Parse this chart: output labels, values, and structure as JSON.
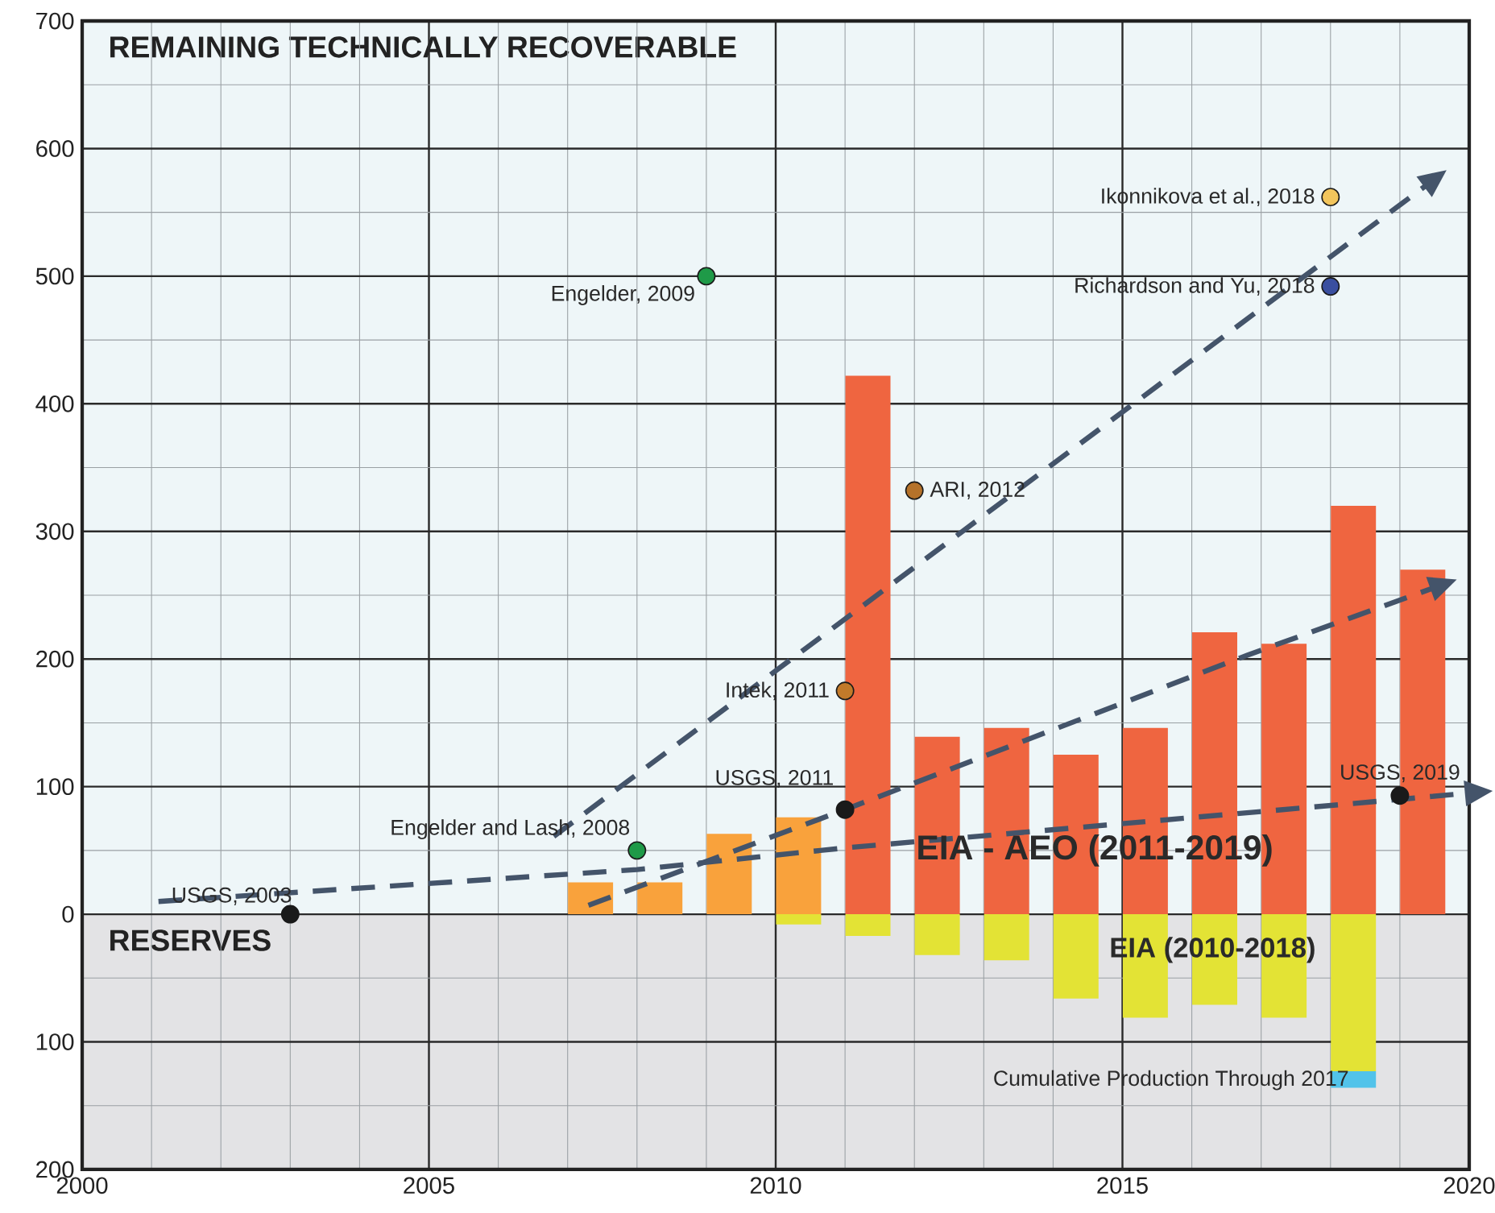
{
  "chart_data": {
    "type": "bar",
    "xlim": [
      2000,
      2020
    ],
    "ylim": [
      -200,
      700
    ],
    "xticks": [
      2000,
      2005,
      2010,
      2015,
      2020
    ],
    "yticks": [
      {
        "value": -200,
        "label": "200"
      },
      {
        "value": -100,
        "label": "100"
      },
      0,
      100,
      200,
      300,
      400,
      500,
      600,
      700
    ],
    "grid": true,
    "bands": [
      {
        "axis": "y",
        "from": 0,
        "to": 700,
        "label": "REMAINING TECHNICALLY RECOVERABLE",
        "color": "#eef6f8"
      },
      {
        "axis": "y",
        "from": -200,
        "to": 0,
        "label": "RESERVES",
        "color": "#e3e3e5"
      }
    ],
    "series": [
      {
        "color": "#f9a23c",
        "x": [
          2007,
          2008,
          2009,
          2010
        ],
        "values": [
          25,
          25,
          63,
          76
        ]
      },
      {
        "color": "#ef6540",
        "x": [
          2011,
          2012,
          2013,
          2014,
          2015,
          2016,
          2017,
          2018,
          2019
        ],
        "values": [
          422,
          139,
          146,
          125,
          146,
          221,
          212,
          320,
          270
        ]
      },
      {
        "color": "#e3e335",
        "x": [
          2010,
          2011,
          2012,
          2013,
          2014,
          2015,
          2016,
          2017,
          2018
        ],
        "values": [
          -8,
          -17,
          -32,
          -36,
          -66,
          -81,
          -71,
          -81,
          -123
        ]
      },
      {
        "color": "#52c3ea",
        "x": [
          2018
        ],
        "values": [
          -13
        ],
        "base": [
          -123
        ]
      },
      {
        "type": "scatter",
        "marker": "circle",
        "x": [
          2003,
          2008,
          2009,
          2011,
          2011,
          2012,
          2018,
          2018,
          2019
        ],
        "values": [
          0,
          50,
          500,
          175,
          82,
          332,
          562,
          492,
          93
        ],
        "colors": [
          "#1a1a1a",
          "#1f9a48",
          "#1f9a48",
          "#c27a2a",
          "#1a1a1a",
          "#b5722a",
          "#f2c55c",
          "#3a4fa0",
          "#1a1a1a"
        ]
      },
      {
        "type": "line",
        "line_style": "dashed",
        "color": "#44546a",
        "x": [
          2006.8,
          2019.4
        ],
        "values": [
          61,
          572
        ]
      },
      {
        "type": "line",
        "line_style": "dashed",
        "color": "#44546a",
        "x": [
          2007.3,
          2011,
          2016.8,
          2019.5
        ],
        "values": [
          7,
          82,
          203,
          256
        ]
      },
      {
        "type": "line",
        "line_style": "dashed",
        "color": "#44546a",
        "x": [
          2001.1,
          2008,
          2011,
          2019,
          2020
        ],
        "values": [
          10,
          35,
          52,
          90,
          95
        ]
      }
    ],
    "annotations": [
      {
        "text": "USGS, 2003",
        "x": 2003,
        "y": 0
      },
      {
        "text": "Engelder and Lash, 2008",
        "x": 2008,
        "y": 50
      },
      {
        "text": "Engelder, 2009",
        "x": 2009,
        "y": 500
      },
      {
        "text": "Intek, 2011",
        "x": 2011,
        "y": 175
      },
      {
        "text": "USGS, 2011",
        "x": 2011,
        "y": 82
      },
      {
        "text": "ARI, 2012",
        "x": 2012,
        "y": 332
      },
      {
        "text": "Ikonnikova et al., 2018",
        "x": 2018,
        "y": 562
      },
      {
        "text": "Richardson and Yu, 2018",
        "x": 2018,
        "y": 492
      },
      {
        "text": "USGS, 2019",
        "x": 2019,
        "y": 93
      },
      {
        "text": "EIA - AEO (2011-2019)",
        "x": 2014.6,
        "y": 50
      },
      "EIA (2010-2018)",
      "Cumulative Production Through 2017"
    ]
  }
}
